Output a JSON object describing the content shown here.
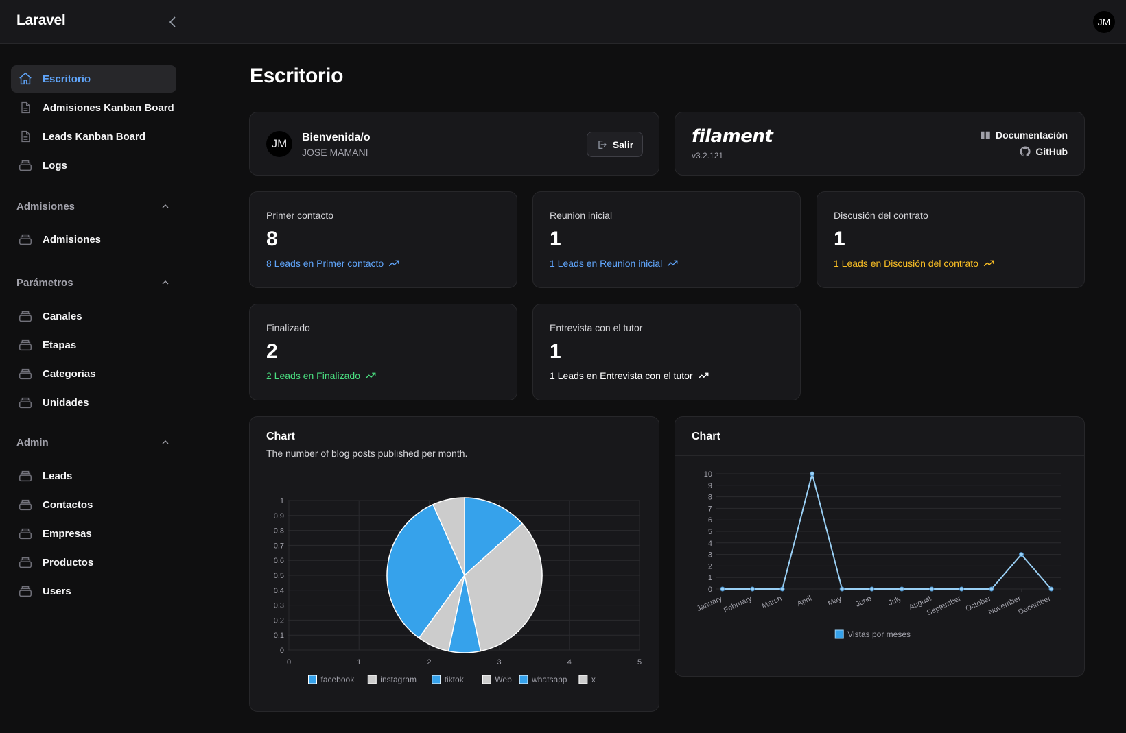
{
  "app": {
    "brand": "Laravel",
    "user_initials": "JM"
  },
  "sidebar": {
    "items_top": [
      {
        "label": "Escritorio",
        "icon": "home-icon",
        "active": true
      },
      {
        "label": "Admisiones Kanban Board",
        "icon": "document-icon"
      },
      {
        "label": "Leads Kanban Board",
        "icon": "document-icon"
      },
      {
        "label": "Logs",
        "icon": "stack-icon"
      }
    ],
    "groups": [
      {
        "label": "Admisiones",
        "items": [
          {
            "label": "Admisiones",
            "icon": "stack-icon"
          }
        ]
      },
      {
        "label": "Parámetros",
        "items": [
          {
            "label": "Canales",
            "icon": "stack-icon"
          },
          {
            "label": "Etapas",
            "icon": "stack-icon"
          },
          {
            "label": "Categorias",
            "icon": "stack-icon"
          },
          {
            "label": "Unidades",
            "icon": "stack-icon"
          }
        ]
      },
      {
        "label": "Admin",
        "items": [
          {
            "label": "Leads",
            "icon": "stack-icon"
          },
          {
            "label": "Contactos",
            "icon": "stack-icon"
          },
          {
            "label": "Empresas",
            "icon": "stack-icon"
          },
          {
            "label": "Productos",
            "icon": "stack-icon"
          },
          {
            "label": "Users",
            "icon": "stack-icon"
          }
        ]
      }
    ]
  },
  "page": {
    "title": "Escritorio"
  },
  "welcome": {
    "avatar": "JM",
    "title": "Bienvenida/o",
    "name": "JOSE MAMANI",
    "logout_label": "Salir"
  },
  "filament": {
    "logo": "filament",
    "version": "v3.2.121",
    "docs_label": "Documentación",
    "github_label": "GitHub"
  },
  "stats": [
    {
      "label": "Primer contacto",
      "value": "8",
      "description": "8 Leads en Primer contacto",
      "color": "#60a5fa"
    },
    {
      "label": "Reunion inicial",
      "value": "1",
      "description": "1 Leads en Reunion inicial",
      "color": "#60a5fa"
    },
    {
      "label": "Discusión del contrato",
      "value": "1",
      "description": "1 Leads en Discusión del contrato",
      "color": "#fbbf24"
    },
    {
      "label": "Finalizado",
      "value": "2",
      "description": "2 Leads en Finalizado",
      "color": "#4ade80"
    },
    {
      "label": "Entrevista con el tutor",
      "value": "1",
      "description": "1 Leads en Entrevista con el tutor",
      "color": "#ffffff"
    }
  ],
  "chart_data": [
    {
      "type": "pie",
      "title": "Chart",
      "subtitle": "The number of blog posts published per month.",
      "categories": [
        "facebook",
        "instagram",
        "tiktok",
        "Web",
        "whatsapp",
        "x"
      ],
      "values": [
        2,
        5,
        1,
        1,
        5,
        1
      ],
      "colors": [
        "#36a2eb",
        "#cccccc",
        "#36a2eb",
        "#cccccc",
        "#36a2eb",
        "#cccccc"
      ],
      "y_ticks": [
        "0",
        "0.1",
        "0.2",
        "0.3",
        "0.4",
        "0.5",
        "0.6",
        "0.7",
        "0.8",
        "0.9",
        "1"
      ],
      "x_ticks": [
        "0",
        "1",
        "2",
        "3",
        "4",
        "5"
      ],
      "legend": "bottom"
    },
    {
      "type": "line",
      "title": "Chart",
      "categories": [
        "January",
        "February",
        "March",
        "April",
        "May",
        "June",
        "July",
        "August",
        "September",
        "October",
        "November",
        "December"
      ],
      "series": [
        {
          "name": "Vistas por meses",
          "values": [
            0,
            0,
            0,
            10,
            0,
            0,
            0,
            0,
            0,
            0,
            3,
            0
          ],
          "color": "#9ad0f5"
        }
      ],
      "ylim": [
        0,
        10
      ],
      "y_ticks": [
        "0",
        "1",
        "2",
        "3",
        "4",
        "5",
        "6",
        "7",
        "8",
        "9",
        "10"
      ],
      "legend": "bottom"
    }
  ]
}
